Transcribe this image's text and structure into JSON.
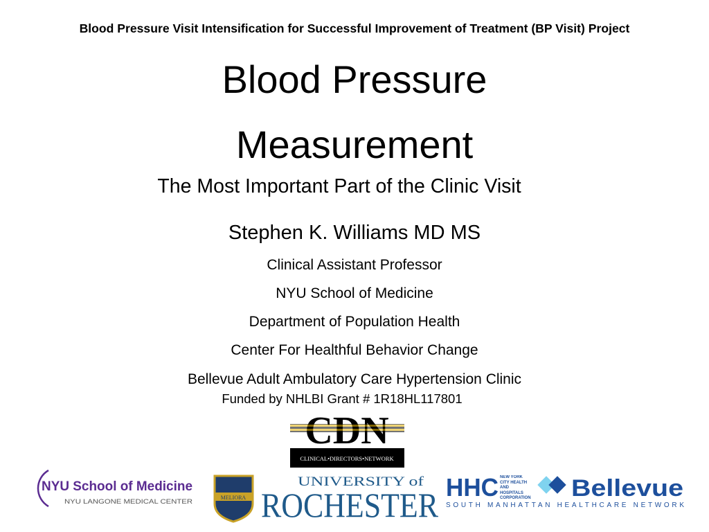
{
  "header": "Blood Pressure Visit Intensification for Successful Improvement of Treatment (BP Visit) Project",
  "title_line1": "Blood Pressure",
  "title_line2": "Measurement",
  "subtitle": "The Most Important Part of the Clinic Visit",
  "presenter": "Stephen K. Williams MD MS",
  "affiliations": [
    "Clinical Assistant Professor",
    "NYU School of Medicine",
    "Department of Population Health",
    "Center For Healthful Behavior Change",
    "Bellevue Adult Ambulatory Care Hypertension Clinic"
  ],
  "funding": "Funded by  NHLBI Grant # 1R18HL117801",
  "logos": {
    "cdn": {
      "mark": "CDN",
      "tagline": "CLINICAL•DIRECTORS•NETWORK"
    },
    "nyu": {
      "name": "NYU School of Medicine",
      "tagline": "NYU LANGONE MEDICAL CENTER",
      "color": "#5b2c91"
    },
    "rochester": {
      "line1": "UNIVERSITY of",
      "line2": "ROCHESTER",
      "shield": "MELIORA",
      "color": "#1f5a8a"
    },
    "hhc": {
      "mark": "HHC",
      "small": "NEW YORK CITY HEALTH AND HOSPITALS CORPORATION",
      "name": "Bellevue",
      "tagline": "SOUTH MANHATTAN HEALTHCARE NETWORK",
      "color": "#1d4f9c"
    }
  }
}
